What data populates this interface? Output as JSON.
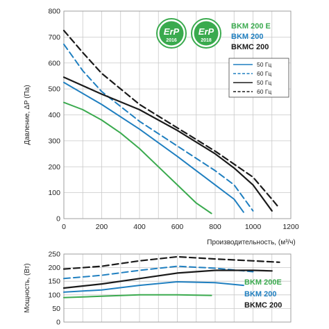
{
  "colors": {
    "green": "#3aaa4e",
    "blue": "#1f7fc0",
    "black": "#1a1a1a",
    "grid": "#c8c8c8",
    "badge_2016": "#3aaa4e",
    "badge_2018": "#3aaa4e"
  },
  "badges": [
    {
      "label": "ErP",
      "year": "2016"
    },
    {
      "label": "ErP",
      "year": "2018"
    }
  ],
  "chart_data": [
    {
      "type": "line",
      "ylabel": "Давление, ΔP (Па)",
      "xlabel": "Производительность, (м³/ч)",
      "xlim": [
        0,
        1200
      ],
      "ylim": [
        0,
        800
      ],
      "x_ticks": [
        "0",
        "200",
        "400",
        "600",
        "800",
        "1000",
        "1200"
      ],
      "y_ticks": [
        "0",
        "100",
        "200",
        "300",
        "400",
        "500",
        "600",
        "700",
        "800"
      ],
      "grid": true,
      "models": [
        {
          "name": "BKM 200 E",
          "color": "green"
        },
        {
          "name": "BKM 200",
          "color": "blue"
        },
        {
          "name": "BKMC 200",
          "color": "black"
        }
      ],
      "legend": [
        {
          "label": "50 Гц",
          "color": "blue",
          "dash": false
        },
        {
          "label": "60 Гц",
          "color": "blue",
          "dash": true
        },
        {
          "label": "50 Гц",
          "color": "black",
          "dash": false
        },
        {
          "label": "60 Гц",
          "color": "black",
          "dash": true
        }
      ],
      "series": [
        {
          "color": "green",
          "dash": false,
          "x": [
            0,
            100,
            200,
            300,
            400,
            500,
            600,
            700,
            780
          ],
          "y": [
            448,
            420,
            380,
            330,
            270,
            200,
            130,
            60,
            20
          ]
        },
        {
          "color": "blue",
          "dash": false,
          "x": [
            0,
            200,
            400,
            600,
            700,
            800,
            900,
            950
          ],
          "y": [
            525,
            440,
            345,
            240,
            185,
            130,
            75,
            25
          ]
        },
        {
          "color": "blue",
          "dash": true,
          "x": [
            0,
            100,
            200,
            400,
            600,
            800,
            900,
            950,
            1000
          ],
          "y": [
            672,
            570,
            490,
            375,
            280,
            185,
            130,
            80,
            30
          ]
        },
        {
          "color": "black",
          "dash": false,
          "x": [
            0,
            200,
            400,
            600,
            800,
            900,
            1000,
            1100
          ],
          "y": [
            545,
            480,
            420,
            340,
            250,
            195,
            130,
            30
          ]
        },
        {
          "color": "black",
          "dash": true,
          "x": [
            0,
            100,
            200,
            400,
            600,
            800,
            1000,
            1100,
            1140
          ],
          "y": [
            725,
            640,
            560,
            440,
            350,
            260,
            160,
            75,
            40
          ]
        }
      ]
    },
    {
      "type": "line",
      "ylabel": "Мощность, (Вт)",
      "xlim": [
        0,
        1200
      ],
      "ylim": [
        0,
        250
      ],
      "y_ticks": [
        "0",
        "50",
        "100",
        "150",
        "200",
        "250"
      ],
      "grid": true,
      "models": [
        {
          "name": "BKM 200E",
          "color": "green"
        },
        {
          "name": "BKM 200",
          "color": "blue"
        },
        {
          "name": "BKMC 200",
          "color": "black"
        }
      ],
      "series": [
        {
          "color": "green",
          "dash": false,
          "x": [
            0,
            200,
            400,
            600,
            780
          ],
          "y": [
            90,
            95,
            100,
            100,
            98
          ]
        },
        {
          "color": "blue",
          "dash": false,
          "x": [
            0,
            200,
            400,
            600,
            800,
            950
          ],
          "y": [
            110,
            118,
            135,
            148,
            145,
            135
          ]
        },
        {
          "color": "blue",
          "dash": true,
          "x": [
            0,
            200,
            400,
            600,
            800,
            1000
          ],
          "y": [
            160,
            172,
            190,
            205,
            198,
            185
          ]
        },
        {
          "color": "black",
          "dash": false,
          "x": [
            0,
            200,
            400,
            600,
            800,
            1000,
            1100
          ],
          "y": [
            125,
            140,
            160,
            180,
            190,
            190,
            188
          ]
        },
        {
          "color": "black",
          "dash": true,
          "x": [
            0,
            200,
            400,
            600,
            800,
            1000,
            1140
          ],
          "y": [
            195,
            205,
            225,
            240,
            232,
            225,
            220
          ]
        }
      ]
    }
  ]
}
